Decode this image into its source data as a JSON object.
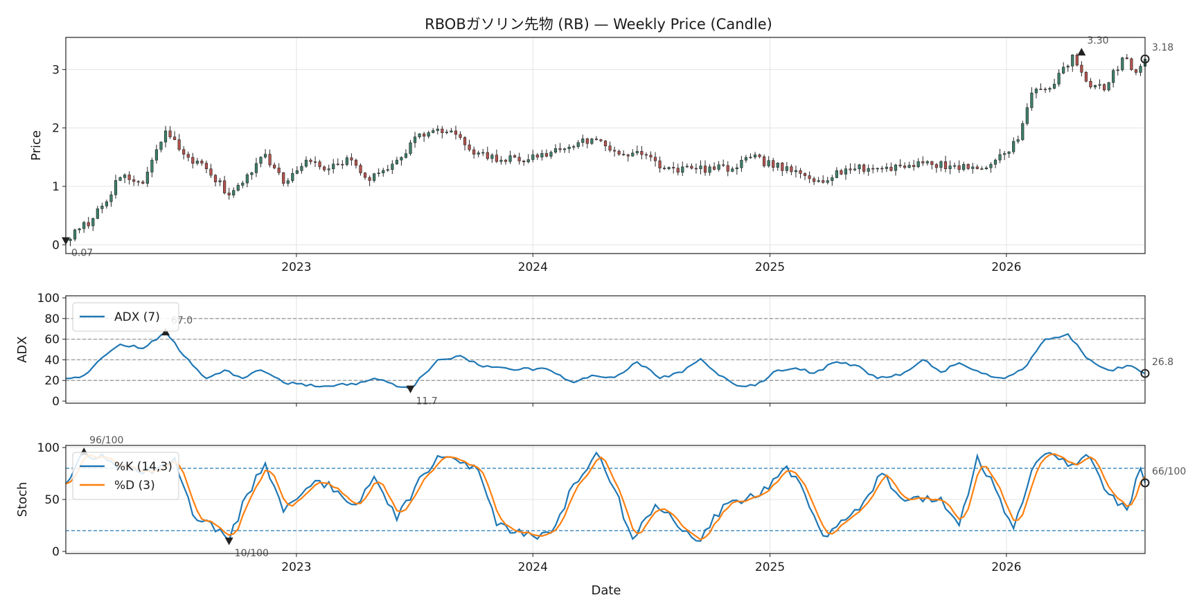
{
  "chart_data": {
    "title": "RBOBガソリン先物 (RB) — Weekly Price (Candle)",
    "xlabel": "Date",
    "x_range": [
      "2022-01-10",
      "2026-08-03"
    ],
    "x_ticks": [
      "2023",
      "2024",
      "2025",
      "2026"
    ],
    "colors": {
      "up": "#3e7f6b",
      "down": "#b4534e",
      "blue": "#1f77b4",
      "orange": "#ff7f0e",
      "ref_grey": "#999999"
    },
    "panels": [
      {
        "id": "price",
        "type": "candlestick",
        "ylabel": "Price",
        "ylim": [
          -0.15,
          3.55
        ],
        "yticks": [
          "0",
          "1",
          "2",
          "3"
        ],
        "anchors_close": [
          [
            "2022-01-10",
            0.07
          ],
          [
            "2022-02-21",
            0.45
          ],
          [
            "2022-04-04",
            1.15
          ],
          [
            "2022-05-09",
            1.05
          ],
          [
            "2022-06-13",
            1.95
          ],
          [
            "2022-07-11",
            1.55
          ],
          [
            "2022-08-15",
            1.3
          ],
          [
            "2022-09-19",
            0.85
          ],
          [
            "2022-10-17",
            1.2
          ],
          [
            "2022-11-14",
            1.55
          ],
          [
            "2022-12-12",
            1.05
          ],
          [
            "2023-01-16",
            1.45
          ],
          [
            "2023-02-20",
            1.3
          ],
          [
            "2023-03-27",
            1.45
          ],
          [
            "2023-04-24",
            1.1
          ],
          [
            "2023-06-05",
            1.45
          ],
          [
            "2023-07-10",
            1.9
          ],
          [
            "2023-08-28",
            1.95
          ],
          [
            "2023-10-02",
            1.55
          ],
          [
            "2023-11-13",
            1.45
          ],
          [
            "2024-01-08",
            1.5
          ],
          [
            "2024-03-11",
            1.75
          ],
          [
            "2024-04-08",
            1.8
          ],
          [
            "2024-05-13",
            1.55
          ],
          [
            "2024-06-10",
            1.6
          ],
          [
            "2024-07-22",
            1.3
          ],
          [
            "2024-09-09",
            1.3
          ],
          [
            "2024-11-04",
            1.3
          ],
          [
            "2024-12-02",
            1.5
          ],
          [
            "2025-02-03",
            1.25
          ],
          [
            "2025-03-17",
            1.1
          ],
          [
            "2025-04-28",
            1.3
          ],
          [
            "2025-06-09",
            1.3
          ],
          [
            "2025-07-21",
            1.35
          ],
          [
            "2025-08-25",
            1.4
          ],
          [
            "2025-10-06",
            1.35
          ],
          [
            "2025-11-24",
            1.3
          ],
          [
            "2025-12-15",
            1.45
          ],
          [
            "2026-01-19",
            1.8
          ],
          [
            "2026-02-09",
            2.6
          ],
          [
            "2026-03-16",
            2.75
          ],
          [
            "2026-04-13",
            3.25
          ],
          [
            "2026-05-04",
            2.8
          ],
          [
            "2026-06-01",
            2.65
          ],
          [
            "2026-06-29",
            3.2
          ],
          [
            "2026-07-20",
            2.95
          ],
          [
            "2026-08-03",
            3.18
          ]
        ],
        "annotations": [
          {
            "label": "0.07",
            "x": "2022-01-10",
            "y": 0.07,
            "marker": "down"
          },
          {
            "label": "3.30",
            "x": "2026-04-27",
            "y": 3.3,
            "marker": "up"
          },
          {
            "label": "3.18",
            "x": "2026-08-03",
            "y": 3.18,
            "marker": "circle"
          }
        ]
      },
      {
        "id": "adx",
        "type": "line",
        "ylabel": "ADX",
        "ylim": [
          -2,
          102
        ],
        "yticks": [
          "0",
          "20",
          "40",
          "60",
          "80",
          "100"
        ],
        "ref_lines": [
          20,
          40,
          60,
          80
        ],
        "series": [
          {
            "name": "ADX (7)",
            "anchors": [
              [
                "2022-01-10",
                22
              ],
              [
                "2022-02-07",
                25
              ],
              [
                "2022-03-07",
                42
              ],
              [
                "2022-04-04",
                55
              ],
              [
                "2022-05-09",
                51
              ],
              [
                "2022-06-13",
                67
              ],
              [
                "2022-07-11",
                44
              ],
              [
                "2022-08-15",
                22
              ],
              [
                "2022-09-12",
                30
              ],
              [
                "2022-10-10",
                22
              ],
              [
                "2022-11-07",
                30
              ],
              [
                "2022-12-12",
                18
              ],
              [
                "2023-01-09",
                17
              ],
              [
                "2023-02-06",
                14
              ],
              [
                "2023-03-06",
                16
              ],
              [
                "2023-04-03",
                16
              ],
              [
                "2023-05-01",
                22
              ],
              [
                "2023-06-26",
                11.7
              ],
              [
                "2023-08-07",
                40
              ],
              [
                "2023-09-11",
                44
              ],
              [
                "2023-10-09",
                35
              ],
              [
                "2023-11-06",
                33
              ],
              [
                "2023-12-04",
                30
              ],
              [
                "2024-01-15",
                32
              ],
              [
                "2024-03-04",
                18
              ],
              [
                "2024-04-01",
                25
              ],
              [
                "2024-05-06",
                23
              ],
              [
                "2024-06-10",
                38
              ],
              [
                "2024-07-15",
                22
              ],
              [
                "2024-08-19",
                28
              ],
              [
                "2024-09-16",
                41
              ],
              [
                "2024-10-14",
                25
              ],
              [
                "2024-11-11",
                15
              ],
              [
                "2024-12-09",
                15
              ],
              [
                "2025-01-13",
                30
              ],
              [
                "2025-02-10",
                32
              ],
              [
                "2025-03-10",
                27
              ],
              [
                "2025-04-14",
                38
              ],
              [
                "2025-05-12",
                35
              ],
              [
                "2025-06-16",
                22
              ],
              [
                "2025-07-21",
                25
              ],
              [
                "2025-08-25",
                40
              ],
              [
                "2025-09-22",
                28
              ],
              [
                "2025-10-20",
                37
              ],
              [
                "2025-11-24",
                27
              ],
              [
                "2025-12-29",
                22
              ],
              [
                "2026-02-02",
                35
              ],
              [
                "2026-03-02",
                60
              ],
              [
                "2026-04-06",
                65
              ],
              [
                "2026-05-04",
                42
              ],
              [
                "2026-06-08",
                30
              ],
              [
                "2026-07-13",
                34
              ],
              [
                "2026-08-03",
                26.8
              ]
            ]
          }
        ],
        "annotations": [
          {
            "label": "67.0",
            "x": "2022-06-13",
            "y": 67,
            "marker": "up"
          },
          {
            "label": "11.7",
            "x": "2023-06-26",
            "y": 11.7,
            "marker": "down"
          },
          {
            "label": "26.8",
            "x": "2026-08-03",
            "y": 26.8,
            "marker": "circle"
          }
        ],
        "legend": "upper left"
      },
      {
        "id": "stoch",
        "type": "line",
        "ylabel": "Stoch",
        "ylim": [
          -2,
          102
        ],
        "yticks": [
          "0",
          "50",
          "100"
        ],
        "ref_lines": [
          20,
          80
        ],
        "series": [
          {
            "name": "%K (14,3)",
            "anchors": [
              [
                "2022-01-10",
                65
              ],
              [
                "2022-02-07",
                96
              ],
              [
                "2022-03-14",
                88
              ],
              [
                "2022-04-18",
                80
              ],
              [
                "2022-05-23",
                75
              ],
              [
                "2022-06-27",
                90
              ],
              [
                "2022-07-25",
                35
              ],
              [
                "2022-08-22",
                28
              ],
              [
                "2022-09-19",
                10
              ],
              [
                "2022-10-17",
                55
              ],
              [
                "2022-11-14",
                85
              ],
              [
                "2022-12-12",
                38
              ],
              [
                "2023-01-09",
                55
              ],
              [
                "2023-02-06",
                68
              ],
              [
                "2023-03-06",
                58
              ],
              [
                "2023-04-03",
                45
              ],
              [
                "2023-05-01",
                72
              ],
              [
                "2023-06-05",
                30
              ],
              [
                "2023-07-03",
                62
              ],
              [
                "2023-08-07",
                92
              ],
              [
                "2023-09-11",
                85
              ],
              [
                "2023-10-09",
                78
              ],
              [
                "2023-11-06",
                25
              ],
              [
                "2023-12-04",
                18
              ],
              [
                "2024-01-08",
                12
              ],
              [
                "2024-02-05",
                25
              ],
              [
                "2024-03-04",
                65
              ],
              [
                "2024-04-08",
                95
              ],
              [
                "2024-05-06",
                60
              ],
              [
                "2024-06-03",
                12
              ],
              [
                "2024-07-08",
                45
              ],
              [
                "2024-08-05",
                30
              ],
              [
                "2024-09-16",
                10
              ],
              [
                "2024-10-21",
                45
              ],
              [
                "2024-11-25",
                50
              ],
              [
                "2024-12-30",
                60
              ],
              [
                "2025-01-27",
                82
              ],
              [
                "2025-02-24",
                55
              ],
              [
                "2025-03-24",
                15
              ],
              [
                "2025-04-21",
                30
              ],
              [
                "2025-05-19",
                40
              ],
              [
                "2025-06-23",
                75
              ],
              [
                "2025-07-21",
                52
              ],
              [
                "2025-08-25",
                48
              ],
              [
                "2025-09-22",
                52
              ],
              [
                "2025-10-20",
                25
              ],
              [
                "2025-11-17",
                92
              ],
              [
                "2025-12-15",
                60
              ],
              [
                "2026-01-12",
                22
              ],
              [
                "2026-02-09",
                78
              ],
              [
                "2026-03-09",
                95
              ],
              [
                "2026-04-06",
                82
              ],
              [
                "2026-05-04",
                93
              ],
              [
                "2026-06-08",
                55
              ],
              [
                "2026-07-06",
                40
              ],
              [
                "2026-07-27",
                80
              ],
              [
                "2026-08-03",
                66
              ]
            ]
          },
          {
            "name": "%D (3)",
            "lag_weeks": 1,
            "anchors": []
          }
        ],
        "annotations": [
          {
            "label": "96/100",
            "x": "2022-02-07",
            "y": 96,
            "marker": "up"
          },
          {
            "label": "10/100",
            "x": "2022-09-19",
            "y": 10,
            "marker": "down"
          },
          {
            "label": "66/100",
            "x": "2026-08-03",
            "y": 66,
            "marker": "circle"
          }
        ],
        "legend": "upper left"
      }
    ]
  }
}
